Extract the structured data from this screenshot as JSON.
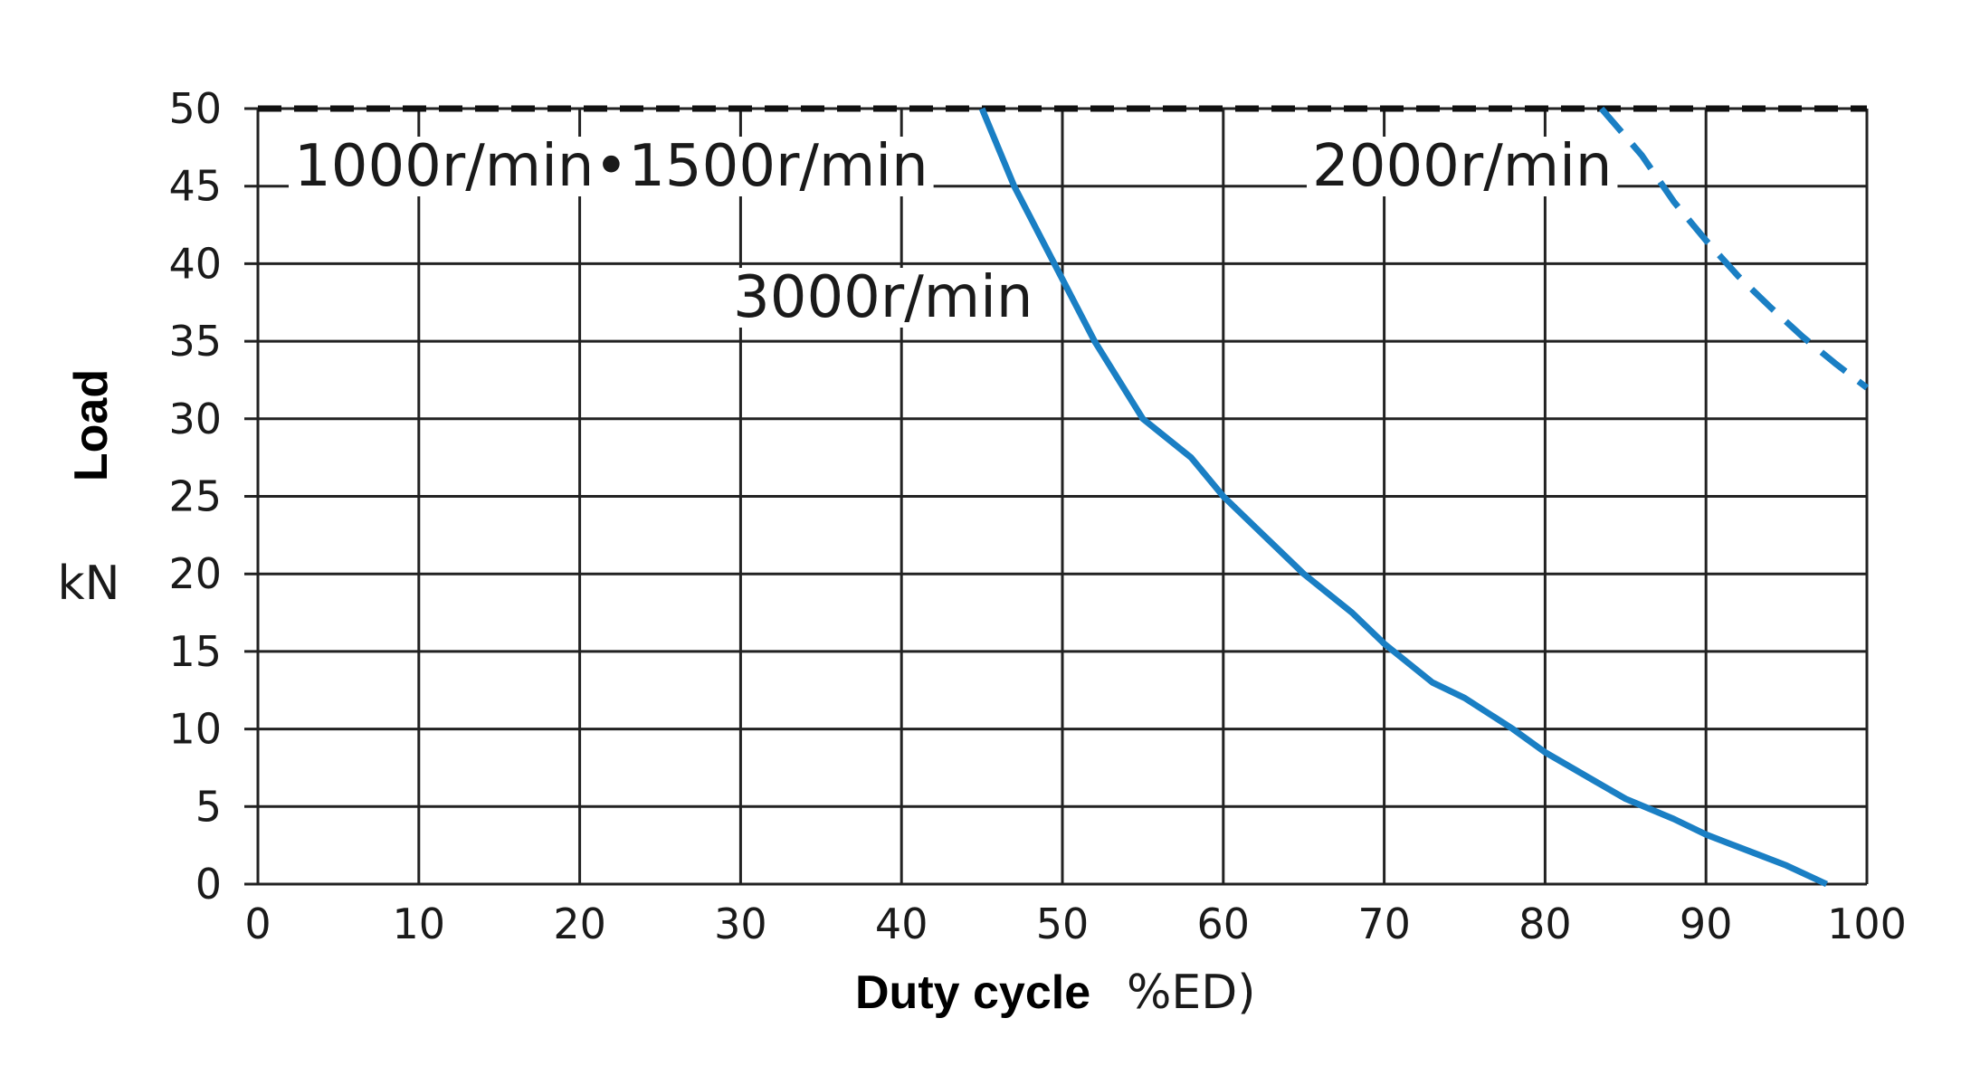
{
  "chart_data": {
    "type": "line",
    "xlabel": "Duty cycle",
    "xunit": "%ED)",
    "ylabel": "Load",
    "yunit": "kN",
    "xlim": [
      0,
      100
    ],
    "ylim": [
      0,
      50
    ],
    "xticks": [
      0,
      10,
      20,
      30,
      40,
      50,
      60,
      70,
      80,
      90,
      100
    ],
    "yticks": [
      0,
      5,
      10,
      15,
      20,
      25,
      30,
      35,
      40,
      45,
      50
    ],
    "grid": true,
    "colors": {
      "curve": "#1a7fc4",
      "limit": "#111111"
    },
    "series": [
      {
        "name": "1000r/min•1500r/min",
        "style": "dashed-black",
        "x": [
          0,
          100
        ],
        "y": [
          50,
          50
        ]
      },
      {
        "name": "3000r/min",
        "style": "solid-blue",
        "x": [
          45,
          47,
          50,
          52,
          55,
          58,
          60,
          63,
          65,
          68,
          70,
          73,
          75,
          78,
          80,
          83,
          85,
          88,
          90,
          93,
          95,
          97.5
        ],
        "y": [
          50,
          45,
          39,
          35,
          30,
          27.5,
          25,
          22,
          20,
          17.5,
          15.5,
          13,
          12,
          10,
          8.5,
          6.7,
          5.5,
          4.2,
          3.2,
          2,
          1.2,
          0
        ]
      },
      {
        "name": "2000r/min",
        "style": "dashed-blue",
        "x": [
          83.5,
          86,
          88,
          90,
          92,
          94,
          96,
          98,
          100
        ],
        "y": [
          50,
          47,
          44,
          41.5,
          39.2,
          37.2,
          35.3,
          33.6,
          32
        ]
      }
    ]
  }
}
